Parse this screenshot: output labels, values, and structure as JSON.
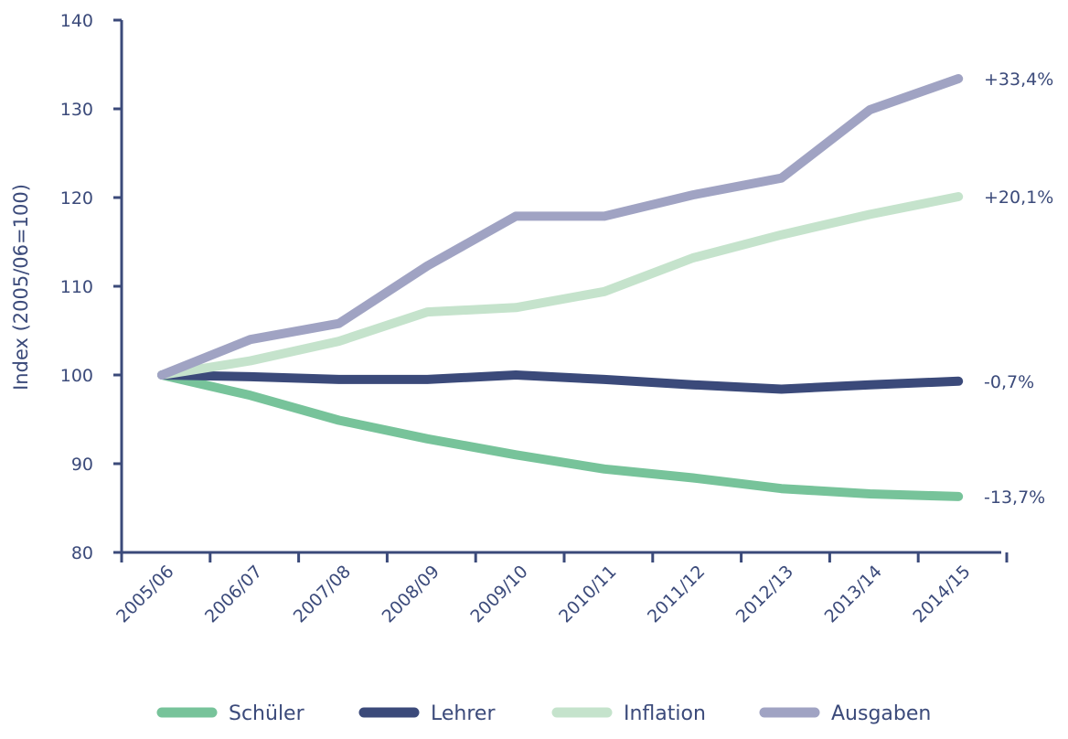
{
  "chart_data": {
    "type": "line",
    "title": "",
    "xlabel": "",
    "ylabel": "Index (2005/06=100)",
    "ylim": [
      80,
      140
    ],
    "yticks": [
      80,
      90,
      100,
      110,
      120,
      130,
      140
    ],
    "grid": false,
    "legend": "bottom",
    "categories": [
      "2005/06",
      "2006/07",
      "2007/08",
      "2008/09",
      "2009/10",
      "2010/11",
      "2011/12",
      "2012/13",
      "2013/14",
      "2014/15"
    ],
    "series": [
      {
        "name": "Schüler",
        "color": "#77c39a",
        "end_label": "-13,7%",
        "values": [
          100,
          97.7,
          94.9,
          92.8,
          91.0,
          89.4,
          88.4,
          87.2,
          86.6,
          86.3
        ]
      },
      {
        "name": "Lehrer",
        "color": "#3b4a7a",
        "end_label": "-0,7%",
        "values": [
          100,
          99.8,
          99.5,
          99.5,
          100,
          99.5,
          98.9,
          98.4,
          98.9,
          99.3
        ]
      },
      {
        "name": "Inflation",
        "color": "#c5e3cc",
        "end_label": "+20,1%",
        "values": [
          100,
          101.6,
          103.8,
          107.1,
          107.6,
          109.4,
          113.2,
          115.8,
          118.1,
          120.1
        ]
      },
      {
        "name": "Ausgaben",
        "color": "#a0a3c3",
        "end_label": "+33,4%",
        "values": [
          100,
          104.0,
          105.8,
          112.3,
          117.9,
          117.9,
          120.3,
          122.2,
          129.9,
          133.4
        ]
      }
    ]
  }
}
